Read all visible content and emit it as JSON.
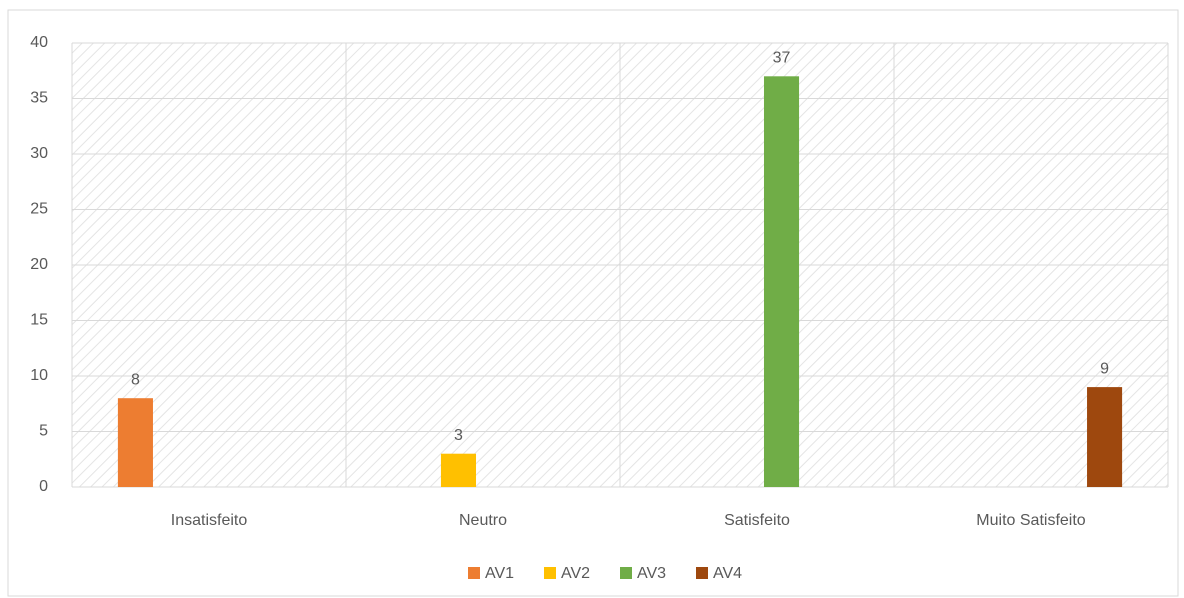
{
  "chart_data": {
    "type": "bar",
    "categories": [
      "Insatisfeito",
      "Neutro",
      "Satisfeito",
      "Muito Satisfeito"
    ],
    "series": [
      {
        "name": "AV1",
        "color": "#ed7d31",
        "values": [
          8,
          null,
          null,
          null
        ]
      },
      {
        "name": "AV2",
        "color": "#ffc000",
        "values": [
          null,
          3,
          null,
          null
        ]
      },
      {
        "name": "AV3",
        "color": "#70ad47",
        "values": [
          null,
          null,
          37,
          null
        ]
      },
      {
        "name": "AV4",
        "color": "#9e480e",
        "values": [
          null,
          null,
          null,
          9
        ]
      }
    ],
    "ylim": [
      0,
      40
    ],
    "yticks": [
      0,
      5,
      10,
      15,
      20,
      25,
      30,
      35,
      40
    ],
    "grid": true,
    "legend": "bottom"
  }
}
